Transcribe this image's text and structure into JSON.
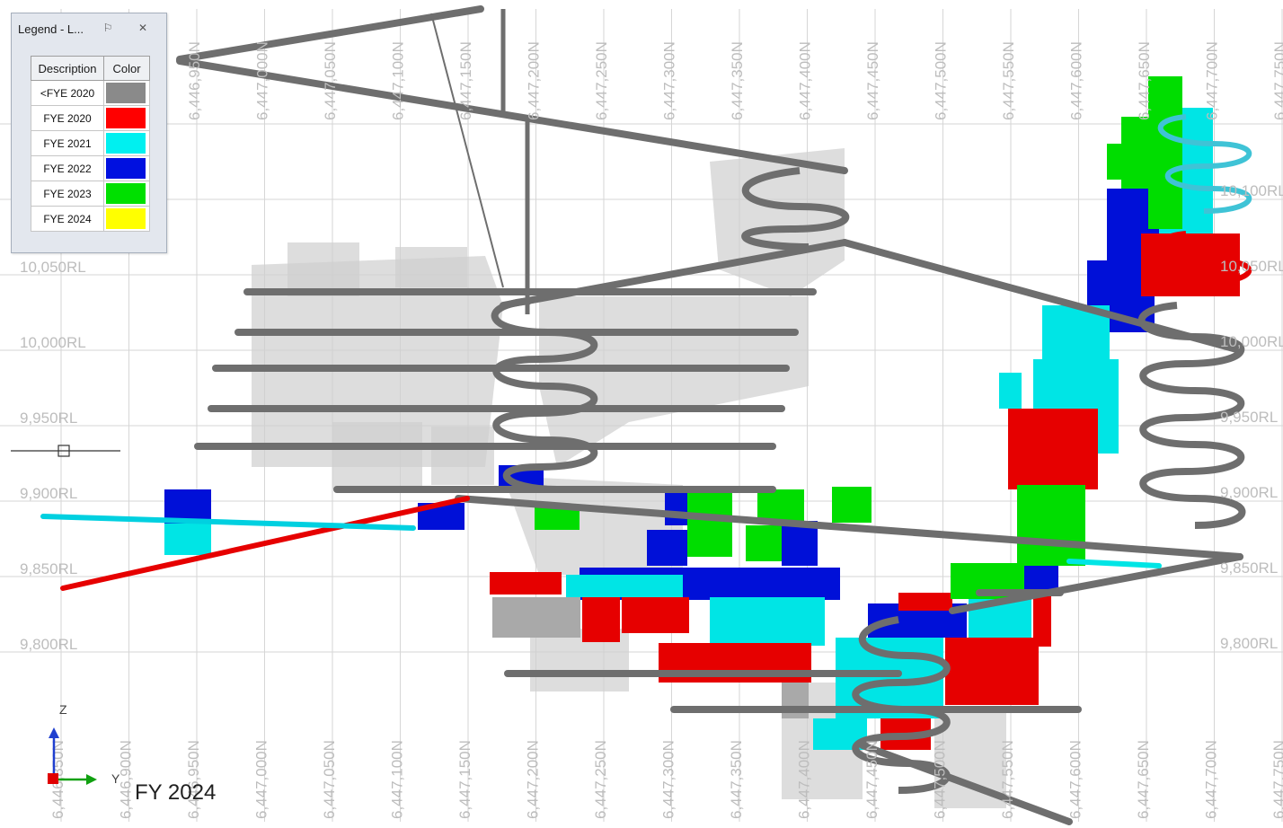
{
  "legend": {
    "title": "Legend - L...",
    "pin_icon": "pin-icon",
    "close_icon": "close-icon",
    "headers": {
      "description": "Description",
      "color": "Color"
    },
    "rows": [
      {
        "label": "<FYE 2020",
        "color": "#8a8a8a"
      },
      {
        "label": "FYE 2020",
        "color": "#ff0000"
      },
      {
        "label": "FYE 2021",
        "color": "#00f0f0"
      },
      {
        "label": "FYE 2022",
        "color": "#0010e0"
      },
      {
        "label": "FYE 2023",
        "color": "#00e000"
      },
      {
        "label": "FYE 2024",
        "color": "#ffff00"
      }
    ]
  },
  "grid": {
    "rl_left": [
      "10,050RL",
      "10,000RL",
      "9,950RL",
      "9,900RL",
      "9,850RL",
      "9,800RL"
    ],
    "rl_right": [
      "10,100RL",
      "10,050RL",
      "10,000RL",
      "9,950RL",
      "9,900RL",
      "9,850RL",
      "9,800RL"
    ],
    "northings_top": [
      "6,446,950N",
      "6,447,000N",
      "6,447,050N",
      "6,447,100N",
      "6,447,150N",
      "6,447,200N",
      "6,447,250N",
      "6,447,300N",
      "6,447,350N",
      "6,447,400N",
      "6,447,450N",
      "6,447,500N",
      "6,447,550N",
      "6,447,600N",
      "6,447,650N",
      "6,447,700N",
      "6,447,750N"
    ],
    "northings_bottom": [
      "6,446,850N",
      "6,446,900N",
      "6,446,950N",
      "6,447,000N",
      "6,447,050N",
      "6,447,100N",
      "6,447,150N",
      "6,447,200N",
      "6,447,250N",
      "6,447,300N",
      "6,447,350N",
      "6,447,400N",
      "6,447,450N",
      "6,447,500N",
      "6,447,550N",
      "6,447,600N",
      "6,447,650N",
      "6,447,700N",
      "6,447,750N"
    ]
  },
  "caption": "FY 2024",
  "axes": {
    "z": "Z",
    "y": "Y"
  },
  "colors": {
    "grey_fy2020": "#7a7a7a",
    "fy2020": "#e60000",
    "fy2021": "#00e5e5",
    "fy2022": "#0010d8",
    "fy2023": "#00dd00",
    "fy2024": "#ffff00",
    "ghost_stopes": "#d2d2d2",
    "grid": "#d6d6d6"
  }
}
